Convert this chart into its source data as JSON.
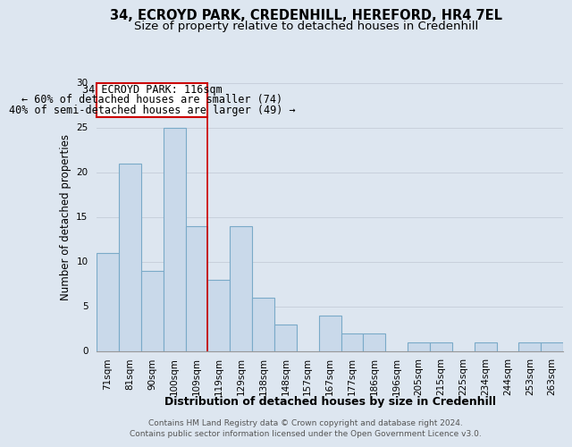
{
  "title1": "34, ECROYD PARK, CREDENHILL, HEREFORD, HR4 7EL",
  "title2": "Size of property relative to detached houses in Credenhill",
  "xlabel": "Distribution of detached houses by size in Credenhill",
  "ylabel": "Number of detached properties",
  "categories": [
    "71sqm",
    "81sqm",
    "90sqm",
    "100sqm",
    "109sqm",
    "119sqm",
    "129sqm",
    "138sqm",
    "148sqm",
    "157sqm",
    "167sqm",
    "177sqm",
    "186sqm",
    "196sqm",
    "205sqm",
    "215sqm",
    "225sqm",
    "234sqm",
    "244sqm",
    "253sqm",
    "263sqm"
  ],
  "values": [
    11,
    21,
    9,
    25,
    14,
    8,
    14,
    6,
    3,
    0,
    4,
    2,
    2,
    0,
    1,
    1,
    0,
    1,
    0,
    1,
    1
  ],
  "bar_color": "#c9d9ea",
  "bar_edgecolor": "#7aaac8",
  "bar_linewidth": 0.8,
  "vline_x_idx": 4.5,
  "vline_color": "#cc0000",
  "vline_linewidth": 1.2,
  "annotation_line1": "34 ECROYD PARK: 116sqm",
  "annotation_line2": "← 60% of detached houses are smaller (74)",
  "annotation_line3": "40% of semi-detached houses are larger (49) →",
  "box_edgecolor": "#cc0000",
  "box_facecolor": "#ffffff",
  "ylim": [
    0,
    30
  ],
  "yticks": [
    0,
    5,
    10,
    15,
    20,
    25,
    30
  ],
  "grid_color": "#c8d0dc",
  "bg_color": "#dde6f0",
  "footer": "Contains HM Land Registry data © Crown copyright and database right 2024.\nContains public sector information licensed under the Open Government Licence v3.0.",
  "title1_fontsize": 10.5,
  "title2_fontsize": 9.5,
  "xlabel_fontsize": 9,
  "ylabel_fontsize": 8.5,
  "footer_fontsize": 6.5,
  "tick_fontsize": 7.5,
  "annotation_fontsize": 8.5
}
